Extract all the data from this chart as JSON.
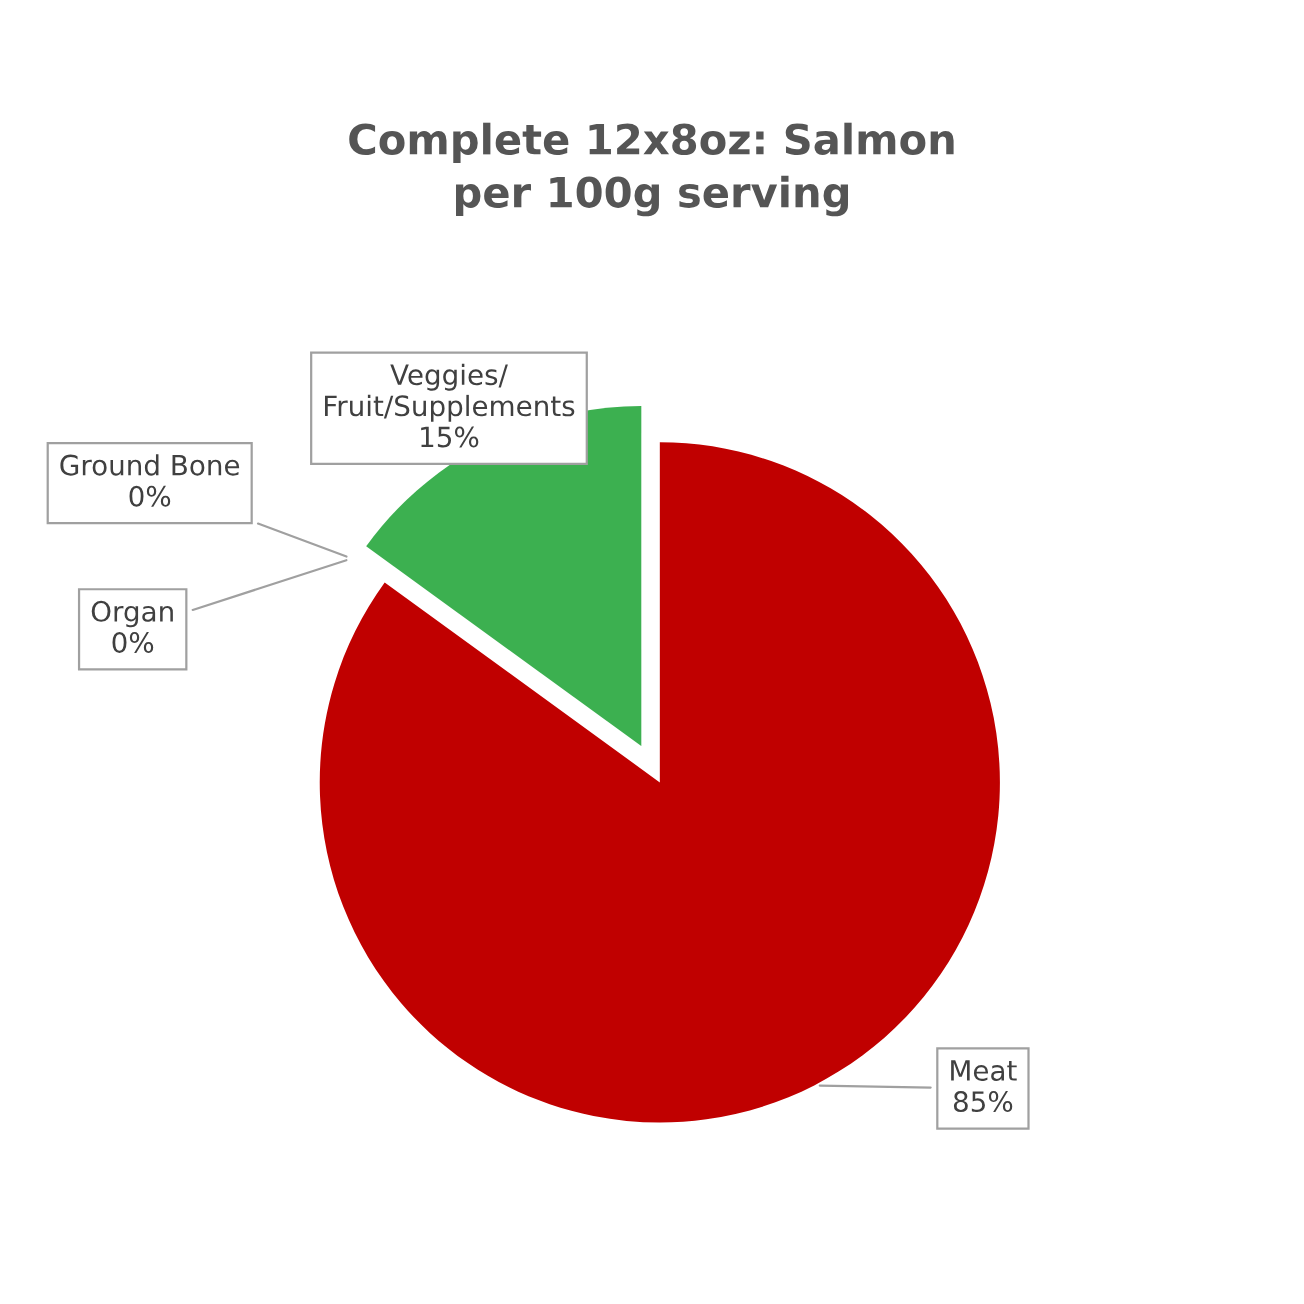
{
  "chart_data": {
    "type": "pie",
    "title": "Complete 12x8oz: Salmon\nper 100g serving",
    "categories": [
      "Meat",
      "Organ",
      "Ground Bone",
      "Veggies/\nFruit/Supplements"
    ],
    "values": [
      85,
      0,
      0,
      15
    ],
    "colors": [
      "#c00000",
      "#e07b39",
      "#a5a5a5",
      "#3cb050"
    ],
    "value_labels": [
      "85%",
      "0%",
      "0%",
      "15%"
    ],
    "legend": false
  }
}
